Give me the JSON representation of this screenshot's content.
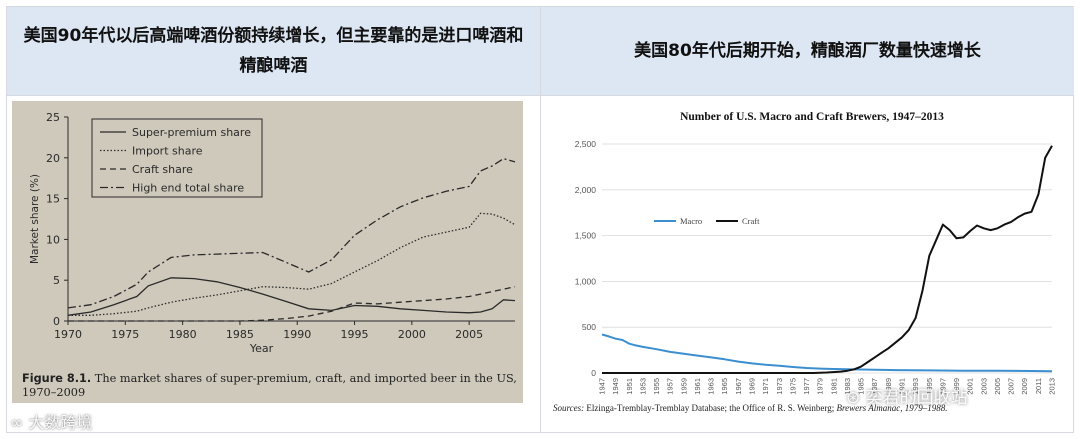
{
  "panels": {
    "left_title": "美国90年代以后高端啤酒份额持续增长，但主要靠的是进口啤酒和精酿啤酒",
    "right_title": "美国80年代后期开始，精酿酒厂数量快速增长"
  },
  "chart_data": [
    {
      "type": "line",
      "title": "",
      "xlabel": "Year",
      "ylabel": "Market share (%)",
      "xlim": [
        1970,
        2009
      ],
      "ylim": [
        0,
        25
      ],
      "x_ticks": [
        1970,
        1975,
        1980,
        1985,
        1990,
        1995,
        2000,
        2005
      ],
      "y_ticks": [
        0,
        5,
        10,
        15,
        20,
        25
      ],
      "legend_position": "top-left",
      "caption_label": "Figure 8.1.",
      "caption_text": "The market shares of super-premium, craft, and imported beer in the US, 1970–2009",
      "x": [
        1970,
        1972,
        1974,
        1976,
        1977,
        1979,
        1981,
        1983,
        1985,
        1987,
        1989,
        1991,
        1993,
        1995,
        1997,
        1999,
        2001,
        2003,
        2005,
        2006,
        2007,
        2008,
        2009
      ],
      "series": [
        {
          "name": "Super-premium share",
          "style": "solid",
          "values": [
            0.7,
            1.1,
            2.0,
            3.0,
            4.3,
            5.3,
            5.2,
            4.8,
            4.1,
            3.3,
            2.4,
            1.5,
            1.3,
            1.9,
            1.8,
            1.5,
            1.3,
            1.1,
            1.0,
            1.1,
            1.5,
            2.6,
            2.5
          ]
        },
        {
          "name": "Import share",
          "style": "dotted",
          "values": [
            0.7,
            0.7,
            0.9,
            1.2,
            1.6,
            2.3,
            2.8,
            3.2,
            3.7,
            4.2,
            4.1,
            3.9,
            4.6,
            6.0,
            7.4,
            9.0,
            10.3,
            10.9,
            11.5,
            13.2,
            13.1,
            12.6,
            11.8
          ]
        },
        {
          "name": "Craft share",
          "style": "dashed",
          "values": [
            0.0,
            0.0,
            0.0,
            0.0,
            0.0,
            0.0,
            0.0,
            0.0,
            0.0,
            0.1,
            0.3,
            0.6,
            1.2,
            2.2,
            2.1,
            2.3,
            2.5,
            2.7,
            3.0,
            3.3,
            3.6,
            3.9,
            4.2
          ]
        },
        {
          "name": "High end total share",
          "style": "dashdot",
          "values": [
            1.6,
            2.0,
            3.0,
            4.5,
            6.0,
            7.8,
            8.1,
            8.2,
            8.3,
            8.4,
            7.2,
            6.0,
            7.5,
            10.5,
            12.4,
            14.0,
            15.1,
            15.9,
            16.5,
            18.4,
            19.0,
            19.9,
            19.5
          ]
        }
      ]
    },
    {
      "type": "line",
      "title": "Number of U.S. Macro and Craft Brewers, 1947–2013",
      "xlabel": "",
      "ylabel": "",
      "xlim": [
        1947,
        2013
      ],
      "ylim": [
        0,
        2500
      ],
      "y_ticks": [
        0,
        500,
        1000,
        1500,
        2000,
        2500
      ],
      "y_tick_labels": [
        "0",
        "500",
        "1,000",
        "1,500",
        "2,000",
        "2,500"
      ],
      "x_ticks": [
        1947,
        1949,
        1951,
        1953,
        1955,
        1957,
        1959,
        1961,
        1963,
        1965,
        1967,
        1969,
        1971,
        1973,
        1975,
        1977,
        1979,
        1981,
        1983,
        1985,
        1987,
        1989,
        1991,
        1993,
        1995,
        1997,
        1999,
        2001,
        2003,
        2005,
        2007,
        2009,
        2011,
        2013
      ],
      "legend_position": "middle-left",
      "sources_label": "Sources:",
      "sources_text": "Elzinga-Tremblay-Tremblay Database; the Office of R. S. Weinberg;",
      "sources_italic": "Brewers Almanac, 1979–1988.",
      "series": [
        {
          "name": "Macro",
          "color": "#3b8fd0",
          "x": [
            1947,
            1948,
            1949,
            1950,
            1951,
            1952,
            1953,
            1955,
            1957,
            1959,
            1961,
            1963,
            1965,
            1967,
            1969,
            1971,
            1973,
            1975,
            1977,
            1979,
            1981,
            1983,
            1985,
            1987,
            1990,
            1995,
            2000,
            2005,
            2010,
            2013
          ],
          "values": [
            420,
            400,
            375,
            360,
            320,
            300,
            285,
            260,
            230,
            210,
            190,
            170,
            150,
            125,
            105,
            90,
            80,
            65,
            55,
            48,
            44,
            40,
            38,
            35,
            32,
            28,
            25,
            24,
            22,
            20
          ]
        },
        {
          "name": "Craft",
          "color": "#111111",
          "x": [
            1947,
            1978,
            1980,
            1982,
            1983,
            1984,
            1985,
            1986,
            1987,
            1988,
            1989,
            1990,
            1991,
            1992,
            1993,
            1994,
            1995,
            1996,
            1997,
            1998,
            1999,
            2000,
            2001,
            2002,
            2003,
            2004,
            2005,
            2006,
            2007,
            2008,
            2009,
            2010,
            2011,
            2012,
            2013
          ],
          "values": [
            0,
            0,
            5,
            15,
            25,
            40,
            70,
            120,
            170,
            220,
            270,
            330,
            390,
            470,
            600,
            900,
            1280,
            1450,
            1620,
            1560,
            1470,
            1480,
            1550,
            1610,
            1580,
            1560,
            1580,
            1620,
            1650,
            1700,
            1740,
            1760,
            1950,
            2350,
            2480
          ]
        }
      ]
    }
  ],
  "watermarks": {
    "left": "大数跨境",
    "right": "奕君的回收站"
  }
}
